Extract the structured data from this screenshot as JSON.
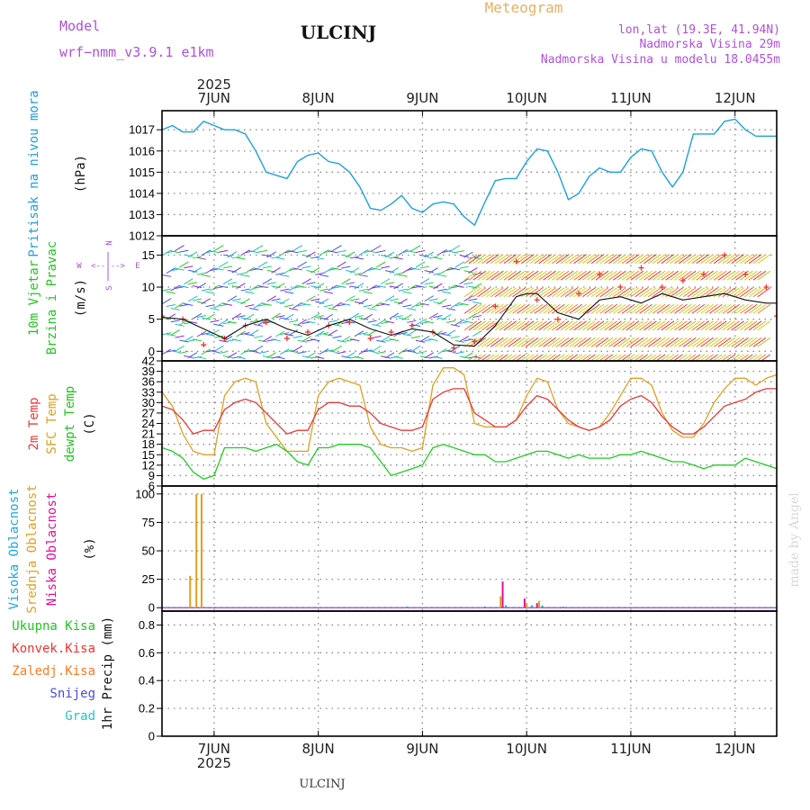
{
  "header": {
    "model_label": "Model",
    "model_name": "wrf−nmm_v3.9.1  e1km",
    "station": "ULCINJ",
    "product": "Meteogram",
    "location_line1": "lon,lat (19.3E, 41.94N)",
    "location_line2": "Nadmorska Visina 29m",
    "location_line3": "Nadmorska Visina u modelu 18.0455m"
  },
  "footer": {
    "station": "ULCINJ",
    "credit": "made by Angel"
  },
  "time_axis": {
    "year": "2025",
    "day_labels": [
      "7JUN",
      "8JUN",
      "9JUN",
      "10JUN",
      "11JUN",
      "12JUN"
    ],
    "day_positions": [
      0.5,
      1.5,
      2.5,
      3.5,
      4.5,
      5.5
    ],
    "range": [
      0,
      5.9
    ]
  },
  "colors": {
    "pressure": "#1fa0e0",
    "temp2m": "#e8393a",
    "sfc_temp": "#e0a020",
    "dewpoint": "#22cc22",
    "high_cloud": "#1fa8e0",
    "mid_cloud": "#e0a020",
    "low_cloud": "#e0109a",
    "total_precip": "#22c422",
    "conv_precip": "#ee3333",
    "frozen_precip": "#ff7a20",
    "snow": "#4a4ae0",
    "hail": "#20c8c8",
    "wind_purple": "#8b2be2",
    "title_purple": "#b050d8",
    "meteogram_orange": "#e6b060"
  },
  "chart_data": [
    {
      "type": "line",
      "title": "Pritisak na nivou mora",
      "ylabel": "(hPa)",
      "ylim": [
        1012,
        1017.9
      ],
      "yticks": [
        1012,
        1013,
        1014,
        1015,
        1016,
        1017
      ],
      "series": [
        {
          "name": "Pritisak na nivou mora",
          "x": [
            0.0,
            0.1,
            0.2,
            0.3,
            0.4,
            0.5,
            0.6,
            0.7,
            0.8,
            0.9,
            1.0,
            1.2,
            1.3,
            1.4,
            1.5,
            1.6,
            1.7,
            1.8,
            1.9,
            2.0,
            2.1,
            2.2,
            2.3,
            2.4,
            2.5,
            2.6,
            2.7,
            2.8,
            2.9,
            3.0,
            3.1,
            3.2,
            3.3,
            3.4,
            3.5,
            3.6,
            3.7,
            3.8,
            3.9,
            4.0,
            4.1,
            4.2,
            4.3,
            4.4,
            4.5,
            4.6,
            4.7,
            4.8,
            4.9,
            5.0,
            5.1,
            5.2,
            5.3,
            5.4,
            5.5,
            5.6,
            5.7,
            5.8,
            5.9
          ],
          "y": [
            1017.0,
            1017.2,
            1016.9,
            1016.9,
            1017.4,
            1017.2,
            1017.0,
            1017.0,
            1016.8,
            1016.0,
            1015.0,
            1014.7,
            1015.5,
            1015.8,
            1015.9,
            1015.5,
            1015.4,
            1015.0,
            1014.3,
            1013.3,
            1013.2,
            1013.5,
            1013.9,
            1013.3,
            1013.1,
            1013.5,
            1013.6,
            1013.5,
            1012.9,
            1012.5,
            1013.6,
            1014.6,
            1014.7,
            1014.7,
            1015.5,
            1016.1,
            1016.0,
            1015.0,
            1013.7,
            1014.0,
            1014.8,
            1015.2,
            1015.0,
            1015.0,
            1015.7,
            1016.1,
            1016.0,
            1015.0,
            1014.3,
            1015.0,
            1016.8,
            1016.8,
            1016.8,
            1017.4,
            1017.5,
            1017.0,
            1016.7,
            1016.7,
            1016.7
          ]
        }
      ]
    },
    {
      "type": "line",
      "title": "10m Vjetar Brzina i Pravac",
      "ylabel": "(m/s)",
      "ylim": [
        -1.5,
        18
      ],
      "yticks": [
        0,
        5,
        10,
        15
      ],
      "compass": [
        "N",
        "E",
        "S",
        "W"
      ],
      "series": [
        {
          "name": "wind speed",
          "x": [
            0.0,
            0.2,
            0.4,
            0.6,
            0.8,
            1.0,
            1.2,
            1.4,
            1.6,
            1.8,
            2.0,
            2.2,
            2.4,
            2.6,
            2.8,
            3.0,
            3.2,
            3.4,
            3.5,
            3.6,
            3.8,
            4.0,
            4.2,
            4.4,
            4.6,
            4.8,
            5.0,
            5.2,
            5.4,
            5.6,
            5.8,
            5.9
          ],
          "y": [
            5.3,
            5.0,
            3.5,
            2.0,
            4.0,
            5.0,
            3.5,
            2.5,
            4.0,
            5.0,
            3.5,
            2.5,
            3.5,
            3.0,
            1.0,
            0.8,
            4.0,
            8.5,
            9.0,
            9.0,
            6.0,
            5.0,
            8.0,
            8.5,
            7.5,
            9.0,
            8.0,
            8.5,
            9.0,
            8.0,
            7.5,
            7.5
          ]
        },
        {
          "name": "gusts",
          "x": [
            0.0,
            0.2,
            0.4,
            0.6,
            0.8,
            1.0,
            1.2,
            1.4,
            1.6,
            1.8,
            2.0,
            2.2,
            2.4,
            2.6,
            2.8,
            3.0,
            3.2,
            3.4,
            3.6,
            3.8,
            4.0,
            4.2,
            4.4,
            4.6,
            4.8,
            5.0,
            5.2,
            5.4,
            5.6,
            5.8,
            5.9
          ],
          "y": [
            5.5,
            5.0,
            1.0,
            2.0,
            4.0,
            4.5,
            2.0,
            3.0,
            4.0,
            4.5,
            2.0,
            3.0,
            4.0,
            3.0,
            0.5,
            1.5,
            7.0,
            14.0,
            8.0,
            5.0,
            9.0,
            12.0,
            10.0,
            13.0,
            10.0,
            11.0,
            12.0,
            15.0,
            12.0,
            10.0,
            5.5
          ]
        }
      ]
    },
    {
      "type": "line",
      "title": "2m Temp / SFC Temp / dewpt Temp",
      "ylabel": "(C)",
      "ylim": [
        6,
        42
      ],
      "yticks": [
        6,
        9,
        12,
        15,
        18,
        21,
        24,
        27,
        30,
        33,
        36,
        39,
        42
      ],
      "series": [
        {
          "name": "2m Temp",
          "x": [
            0.0,
            0.1,
            0.2,
            0.3,
            0.4,
            0.5,
            0.6,
            0.7,
            0.8,
            0.9,
            1.0,
            1.1,
            1.2,
            1.3,
            1.4,
            1.5,
            1.6,
            1.7,
            1.8,
            1.9,
            2.0,
            2.1,
            2.2,
            2.3,
            2.4,
            2.5,
            2.6,
            2.7,
            2.8,
            2.9,
            3.0,
            3.1,
            3.2,
            3.3,
            3.4,
            3.5,
            3.6,
            3.7,
            3.8,
            3.9,
            4.0,
            4.1,
            4.2,
            4.3,
            4.4,
            4.5,
            4.6,
            4.7,
            4.8,
            4.9,
            5.0,
            5.1,
            5.2,
            5.3,
            5.4,
            5.5,
            5.6,
            5.7,
            5.8,
            5.9
          ],
          "y": [
            29,
            28,
            25,
            21,
            22,
            22,
            28,
            30,
            31,
            30,
            27,
            24,
            21,
            22,
            22,
            28,
            30,
            30,
            29,
            29,
            27,
            24,
            23,
            22,
            22,
            23,
            31,
            33,
            34,
            34,
            27,
            25,
            23,
            23,
            25,
            29,
            32,
            31,
            28,
            25,
            23,
            22,
            23,
            25,
            29,
            31,
            32,
            30,
            26,
            23,
            21,
            21,
            23,
            26,
            29,
            30,
            31,
            33,
            34,
            34
          ]
        },
        {
          "name": "SFC Temp",
          "x": [
            0.0,
            0.1,
            0.2,
            0.3,
            0.4,
            0.5,
            0.6,
            0.7,
            0.8,
            0.9,
            1.0,
            1.1,
            1.2,
            1.3,
            1.4,
            1.5,
            1.6,
            1.7,
            1.8,
            1.9,
            2.0,
            2.1,
            2.2,
            2.3,
            2.4,
            2.5,
            2.6,
            2.7,
            2.8,
            2.9,
            3.0,
            3.1,
            3.2,
            3.3,
            3.4,
            3.5,
            3.6,
            3.7,
            3.8,
            3.9,
            4.0,
            4.1,
            4.2,
            4.3,
            4.4,
            4.5,
            4.6,
            4.7,
            4.8,
            4.9,
            5.0,
            5.1,
            5.2,
            5.3,
            5.4,
            5.5,
            5.6,
            5.7,
            5.8,
            5.9
          ],
          "y": [
            33,
            29,
            21,
            16,
            15,
            15,
            32,
            36,
            37,
            36,
            24,
            20,
            16,
            16,
            16,
            32,
            36,
            37,
            36,
            35,
            23,
            18,
            17,
            17,
            16,
            17,
            35,
            40,
            40,
            38,
            24,
            23,
            23,
            23,
            25,
            32,
            37,
            36,
            28,
            24,
            23,
            22,
            23,
            27,
            32,
            37,
            37,
            35,
            27,
            22,
            20,
            20,
            24,
            30,
            34,
            37,
            37,
            35,
            37,
            38
          ]
        },
        {
          "name": "dewpt Temp",
          "x": [
            0.0,
            0.1,
            0.2,
            0.3,
            0.4,
            0.5,
            0.6,
            0.7,
            0.8,
            0.9,
            1.0,
            1.1,
            1.2,
            1.3,
            1.4,
            1.5,
            1.6,
            1.7,
            1.8,
            1.9,
            2.0,
            2.1,
            2.2,
            2.3,
            2.4,
            2.5,
            2.6,
            2.7,
            2.8,
            2.9,
            3.0,
            3.1,
            3.2,
            3.3,
            3.4,
            3.5,
            3.6,
            3.7,
            3.8,
            3.9,
            4.0,
            4.1,
            4.2,
            4.3,
            4.4,
            4.5,
            4.6,
            4.7,
            4.8,
            4.9,
            5.0,
            5.1,
            5.2,
            5.3,
            5.4,
            5.5,
            5.6,
            5.7,
            5.8,
            5.9
          ],
          "y": [
            17,
            16,
            14,
            10,
            8,
            9,
            17,
            17,
            17,
            16,
            17,
            18,
            16,
            13,
            12,
            17,
            17,
            18,
            18,
            18,
            17,
            13,
            9,
            10,
            11,
            12,
            17,
            18,
            17,
            16,
            15,
            15,
            13,
            13,
            14,
            15,
            16,
            16,
            15,
            14,
            15,
            14,
            14,
            14,
            15,
            15,
            16,
            15,
            14,
            13,
            13,
            12,
            11,
            12,
            12,
            12,
            14,
            13,
            12,
            11
          ]
        }
      ]
    },
    {
      "type": "bar",
      "title": "Visoka Oblacnost / Srednja Oblacnost / Niska Oblacnost",
      "ylabel": "(%)",
      "ylim": [
        -3,
        107
      ],
      "yticks": [
        0,
        25,
        50,
        75,
        100
      ],
      "series": [
        {
          "name": "Visoka Oblacnost",
          "x": [
            2.35,
            3.1,
            3.3,
            3.55,
            3.65,
            3.85
          ],
          "y": [
            1,
            1,
            2,
            2,
            2,
            1
          ]
        },
        {
          "name": "Srednja Oblacnost",
          "x": [
            0.27,
            0.33,
            0.38,
            3.25,
            3.5,
            3.62
          ],
          "y": [
            28,
            100,
            100,
            10,
            4,
            6
          ]
        },
        {
          "name": "Niska Oblacnost",
          "x": [
            3.27,
            3.48,
            3.6
          ],
          "y": [
            23,
            8,
            4
          ]
        }
      ]
    },
    {
      "type": "bar",
      "title": "Ukupna Kisa / Konvek.Kisa / Zaledj.Kisa / Snijeg / Grad",
      "ylabel": "1hr Precip (mm)",
      "ylim": [
        0,
        0.9
      ],
      "yticks": [
        0,
        0.2,
        0.4,
        0.6,
        0.8
      ],
      "ytick_labels": [
        "0",
        "0.2",
        "0.4",
        "0.6",
        "0.8"
      ],
      "series": [
        {
          "name": "Ukupna Kisa",
          "values": []
        },
        {
          "name": "Konvek.Kisa",
          "values": []
        },
        {
          "name": "Zaledj.Kisa",
          "values": []
        },
        {
          "name": "Snijeg",
          "values": []
        },
        {
          "name": "Grad",
          "values": []
        }
      ]
    }
  ]
}
